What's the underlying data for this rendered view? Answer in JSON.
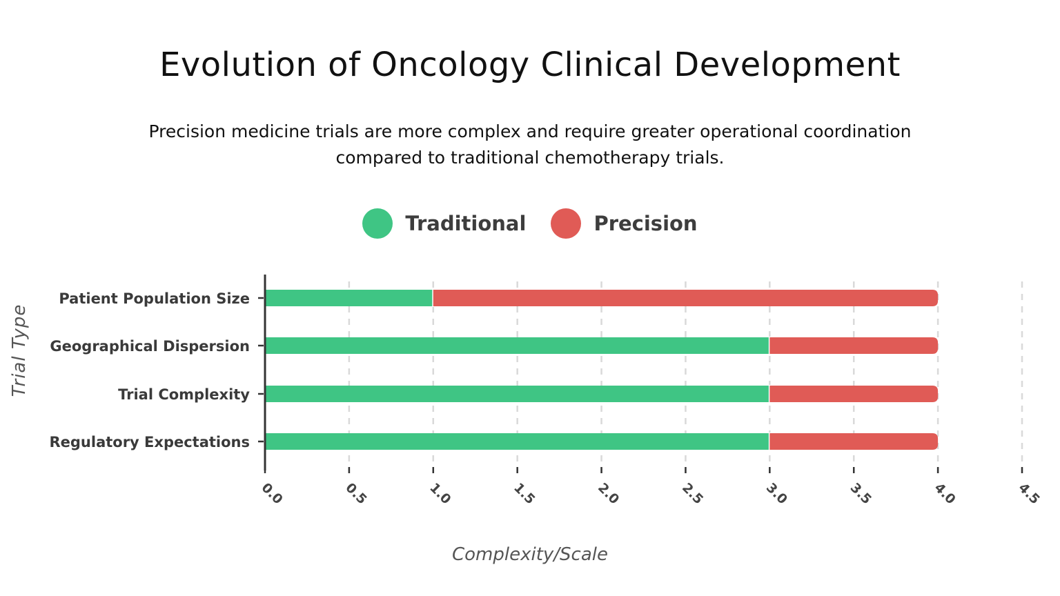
{
  "title": "Evolution of Oncology Clinical Development",
  "subtitle": "Precision medicine trials are more complex and require greater operational coordination compared to traditional chemotherapy trials.",
  "legend": {
    "items": [
      {
        "label": "Traditional",
        "color": "#3fc584"
      },
      {
        "label": "Precision",
        "color": "#e05b56"
      }
    ],
    "placement": "top-center"
  },
  "colors": {
    "traditional": "#3fc584",
    "precision": "#e05b56",
    "axis": "#333333",
    "grid": "#d9d9d9"
  },
  "chart_data": {
    "type": "bar",
    "orientation": "horizontal",
    "stacked": true,
    "title": "Evolution of Oncology Clinical Development",
    "xlabel": "Complexity/Scale",
    "ylabel": "Trial Type",
    "xlim": [
      0,
      4.5
    ],
    "xticks": [
      "0.0",
      "0.5",
      "1.0",
      "1.5",
      "2.0",
      "2.5",
      "3.0",
      "3.5",
      "4.0",
      "4.5"
    ],
    "grid": "vertical dashed",
    "categories": [
      "Patient Population Size",
      "Geographical Dispersion",
      "Trial Complexity",
      "Regulatory Expectations"
    ],
    "series": [
      {
        "name": "Traditional",
        "values": [
          1,
          3,
          3,
          3
        ]
      },
      {
        "name": "Precision",
        "values": [
          3,
          1,
          1,
          1
        ]
      }
    ]
  }
}
